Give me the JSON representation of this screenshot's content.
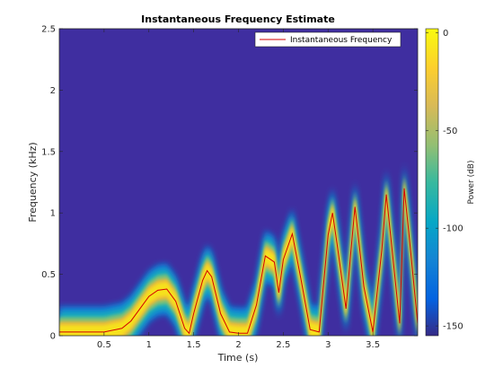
{
  "chart_data": {
    "type": "heatmap",
    "title": "Instantaneous Frequency Estimate",
    "xlabel": "Time (s)",
    "ylabel": "Frequency (kHz)",
    "xlim": [
      0,
      4
    ],
    "ylim": [
      0,
      2.5
    ],
    "xticks": [
      0.5,
      1,
      1.5,
      2,
      2.5,
      3,
      3.5
    ],
    "xtick_labels": [
      "0.5",
      "1",
      "1.5",
      "2",
      "2.5",
      "3",
      "3.5"
    ],
    "yticks": [
      0,
      0.5,
      1,
      1.5,
      2,
      2.5
    ],
    "ytick_labels": [
      "0",
      "0.5",
      "1",
      "1.5",
      "2",
      "2.5"
    ],
    "colormap": "parula",
    "colorbar": {
      "label": "Power (dB)",
      "clim": [
        -155,
        2
      ],
      "ticks": [
        0,
        -50,
        -100,
        -150
      ],
      "tick_labels": [
        "0",
        "-50",
        "-100",
        "-150"
      ]
    },
    "legend": {
      "location": "top-right",
      "entries": [
        "Instantaneous Frequency"
      ]
    },
    "series": [
      {
        "name": "Instantaneous Frequency",
        "color": "#d40000",
        "x": [
          0.0,
          0.5,
          0.7,
          0.8,
          0.9,
          1.0,
          1.1,
          1.2,
          1.3,
          1.4,
          1.45,
          1.5,
          1.6,
          1.65,
          1.7,
          1.8,
          1.9,
          2.0,
          2.1,
          2.2,
          2.3,
          2.4,
          2.45,
          2.5,
          2.6,
          2.7,
          2.8,
          2.9,
          3.0,
          3.05,
          3.1,
          3.2,
          3.25,
          3.3,
          3.4,
          3.5,
          3.6,
          3.65,
          3.7,
          3.8,
          3.85,
          3.9,
          4.0
        ],
        "y": [
          0.03,
          0.03,
          0.06,
          0.12,
          0.22,
          0.32,
          0.37,
          0.38,
          0.28,
          0.06,
          0.02,
          0.18,
          0.45,
          0.53,
          0.48,
          0.18,
          0.03,
          0.02,
          0.02,
          0.25,
          0.65,
          0.6,
          0.35,
          0.62,
          0.83,
          0.45,
          0.05,
          0.03,
          0.82,
          1.0,
          0.75,
          0.22,
          0.65,
          1.05,
          0.4,
          0.03,
          0.7,
          1.15,
          0.8,
          0.1,
          1.2,
          0.85,
          0.1
        ]
      }
    ]
  }
}
